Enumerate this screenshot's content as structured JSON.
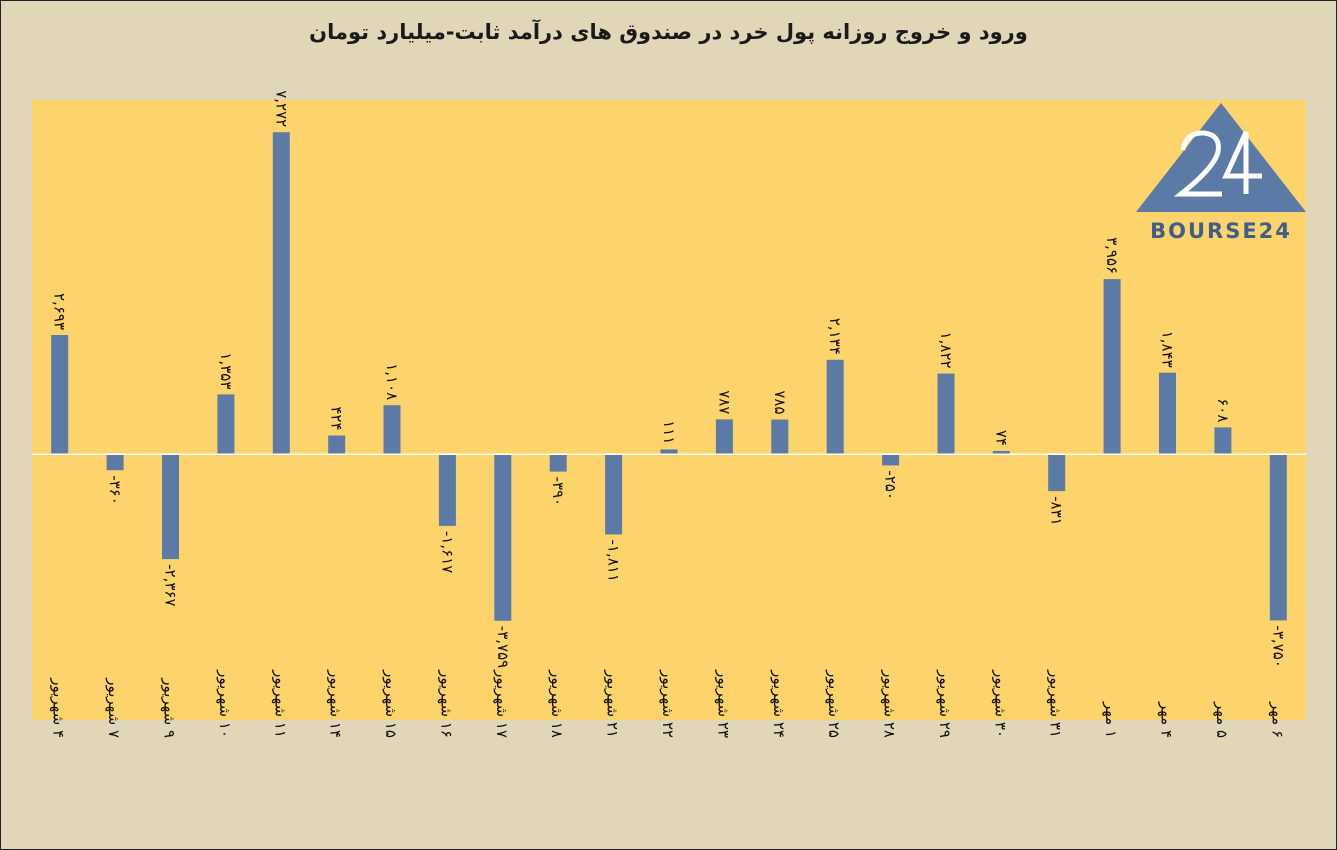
{
  "chart_data": {
    "type": "bar",
    "title": "ورود و خروج روزانه پول خرد در صندوق های درآمد ثابت-میلیارد تومان",
    "categories": [
      "۴ شهریور",
      "۷ شهریور",
      "۹ شهریور",
      "۱۰ شهریور",
      "۱۱ شهریور",
      "۱۴ شهریور",
      "۱۵ شهریور",
      "۱۶ شهریور",
      "۱۷ شهریور",
      "۱۸ شهریور",
      "۲۱ شهریور",
      "۲۲ شهریور",
      "۲۳ شهریور",
      "۲۴ شهریور",
      "۲۵ شهریور",
      "۲۸ شهریور",
      "۲۹ شهریور",
      "۳۰ شهریور",
      "۳۱ شهریور",
      "۱ مهر",
      "۴ مهر",
      "۵ مهر",
      "۶ مهر"
    ],
    "values": [
      2693,
      -360,
      -2367,
      1353,
      7272,
      424,
      1108,
      -1617,
      -3759,
      -390,
      -1811,
      111,
      787,
      785,
      2134,
      -250,
      1822,
      74,
      -831,
      3956,
      1843,
      608,
      -3750
    ],
    "data_labels": [
      "۲,۶۹۳",
      "-۳۶۰",
      "-۲,۳۶۷",
      "۱,۳۵۳",
      "۷,۲۷۲",
      "۴۲۴",
      "۱,۱۰۸",
      "-۱,۶۱۷",
      "-۳,۷۵۹",
      "-۳۹۰",
      "-۱,۸۱۱",
      "۱۱۱",
      "۷۸۷",
      "۷۸۵",
      "۲,۱۳۴",
      "-۲۵۰",
      "۱,۸۲۲",
      "۷۴",
      "-۸۳۱",
      "۳,۹۵۶",
      "۱,۸۴۳",
      "۶۰۸",
      "-۳,۷۵۰"
    ],
    "ylim": [
      -6000,
      8000
    ],
    "grid": false,
    "legend": "none",
    "colors": {
      "bar": "#5b7ba6",
      "plot_bg": "#fcd46b",
      "page_bg": "#e2d6b8",
      "zero_line": "#ffffff"
    }
  },
  "logo": {
    "text": "BOURSE24",
    "mark": "24",
    "colors": {
      "triangle": "#5b7ba6",
      "numerals": "#ffffff",
      "text": "#3e5f8a"
    }
  }
}
